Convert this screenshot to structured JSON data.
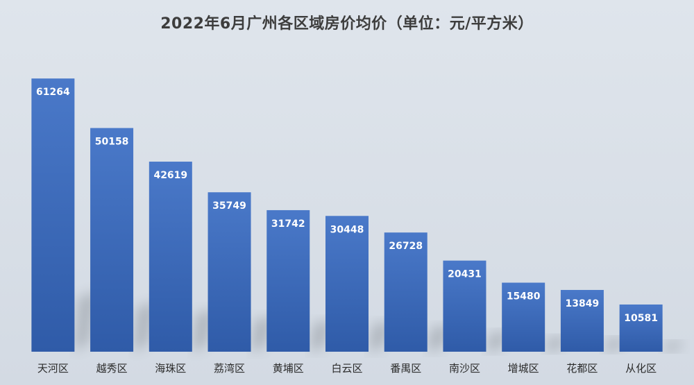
{
  "chart_data": {
    "type": "bar",
    "title": "2022年6月广州各区域房价均价（单位：元/平方米）",
    "xlabel": "",
    "ylabel": "",
    "categories": [
      "天河区",
      "越秀区",
      "海珠区",
      "荔湾区",
      "黄埔区",
      "白云区",
      "番禺区",
      "南沙区",
      "增城区",
      "花都区",
      "从化区"
    ],
    "values": [
      61264,
      50158,
      42619,
      35749,
      31742,
      30448,
      26728,
      20431,
      15480,
      13849,
      10581
    ],
    "ylim": [
      0,
      70000
    ],
    "grid": false,
    "legend": "none",
    "colors": {
      "bar_top": "#4a79c9",
      "bar_bottom": "#2f5ba8",
      "background": "#d6dde6",
      "label": "#ffffff"
    }
  }
}
